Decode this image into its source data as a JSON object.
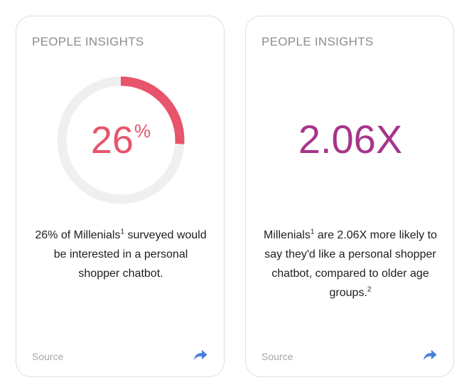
{
  "cards": [
    {
      "title": "PEOPLE INSIGHTS",
      "stat_value": "26",
      "stat_suffix": "%",
      "stat_fraction": 0.26,
      "stat_color": "#e8546b",
      "text_before": "26% of Millenials",
      "sup1": "1",
      "text_after": " surveyed would be interested in a personal shopper chatbot.",
      "source_label": "Source",
      "share_icon": "share-arrow-icon"
    },
    {
      "title": "PEOPLE INSIGHTS",
      "stat_value": "2.06X",
      "stat_color": "#a73589",
      "text_before": "Millenials",
      "sup1": "1",
      "text_after": " are 2.06X more likely to say they'd like a personal shopper chatbot, compared to older age groups.",
      "sup2": "2",
      "source_label": "Source",
      "share_icon": "share-arrow-icon"
    }
  ],
  "colors": {
    "ring_track": "#efefef",
    "ring_fill": "#e8546b",
    "share_icon": "#4a7fd6"
  }
}
